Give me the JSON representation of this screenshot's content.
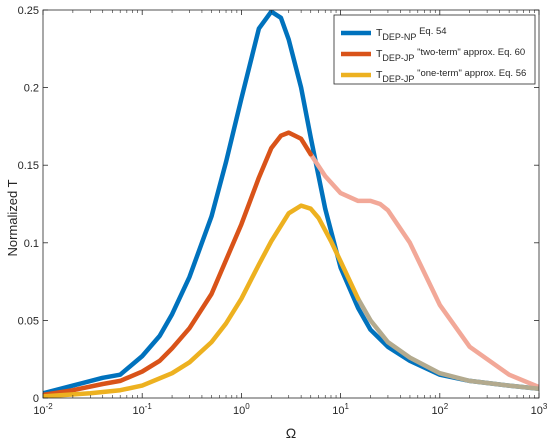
{
  "chart_data": {
    "type": "line",
    "title": "",
    "xlabel": "Ω",
    "ylabel": "Normalized T",
    "xscale": "log",
    "xlim": [
      0.01,
      1000
    ],
    "ylim": [
      0,
      0.25
    ],
    "grid": false,
    "legend_position": "top-right",
    "x_ticks": [
      {
        "value": 0.01,
        "base": "10",
        "exp": "-2"
      },
      {
        "value": 0.1,
        "base": "10",
        "exp": "-1"
      },
      {
        "value": 1,
        "base": "10",
        "exp": "0"
      },
      {
        "value": 10,
        "base": "10",
        "exp": "1"
      },
      {
        "value": 100,
        "base": "10",
        "exp": "2"
      },
      {
        "value": 1000,
        "base": "10",
        "exp": "3"
      }
    ],
    "y_ticks": [
      {
        "value": 0,
        "label": "0"
      },
      {
        "value": 0.05,
        "label": "0.05"
      },
      {
        "value": 0.1,
        "label": "0.1"
      },
      {
        "value": 0.15,
        "label": "0.15"
      },
      {
        "value": 0.2,
        "label": "0.2"
      },
      {
        "value": 0.25,
        "label": "0.25"
      }
    ],
    "series": [
      {
        "name_main": "T",
        "name_sub": "DEP-NP",
        "name_suffix": "Eq. 54",
        "color": "#0072BD",
        "x": [
          0.01,
          0.02,
          0.04,
          0.06,
          0.1,
          0.15,
          0.2,
          0.3,
          0.5,
          0.7,
          1,
          1.5,
          2,
          2.5,
          3,
          4,
          5,
          7,
          10,
          15,
          20,
          30,
          50,
          100,
          200,
          500,
          1000
        ],
        "y": [
          0.003,
          0.008,
          0.013,
          0.015,
          0.027,
          0.04,
          0.054,
          0.078,
          0.117,
          0.152,
          0.193,
          0.238,
          0.249,
          0.245,
          0.231,
          0.2,
          0.168,
          0.122,
          0.084,
          0.058,
          0.044,
          0.033,
          0.024,
          0.015,
          0.011,
          0.008,
          0.006
        ]
      },
      {
        "name_main": "T",
        "name_sub": "DEP-JP",
        "name_suffix": "\"two-term\" approx. Eq. 60",
        "color": "#D95319",
        "fade_after": 5,
        "faded_color": "#F2A898",
        "x": [
          0.01,
          0.02,
          0.04,
          0.06,
          0.1,
          0.15,
          0.2,
          0.3,
          0.5,
          1,
          1.5,
          2,
          2.5,
          3,
          4,
          5,
          7,
          10,
          15,
          20,
          25,
          30,
          50,
          100,
          200,
          500,
          1000
        ],
        "y": [
          0.002,
          0.005,
          0.009,
          0.011,
          0.017,
          0.024,
          0.032,
          0.045,
          0.067,
          0.112,
          0.142,
          0.161,
          0.169,
          0.171,
          0.167,
          0.157,
          0.143,
          0.132,
          0.127,
          0.127,
          0.125,
          0.121,
          0.1,
          0.06,
          0.033,
          0.015,
          0.007
        ]
      },
      {
        "name_main": "T",
        "name_sub": "DEP-JP",
        "name_suffix": "\"one-term\" approx. Eq. 56",
        "color": "#EDB120",
        "fade_after": 12,
        "faded_color": "#B3AA8E",
        "x": [
          0.01,
          0.03,
          0.06,
          0.1,
          0.2,
          0.3,
          0.5,
          0.7,
          1,
          1.5,
          2,
          3,
          4,
          5,
          6,
          8,
          10,
          15,
          20,
          30,
          50,
          100,
          200,
          500,
          1000
        ],
        "y": [
          0.001,
          0.003,
          0.005,
          0.008,
          0.016,
          0.023,
          0.036,
          0.048,
          0.064,
          0.086,
          0.101,
          0.119,
          0.124,
          0.122,
          0.116,
          0.101,
          0.088,
          0.064,
          0.05,
          0.036,
          0.026,
          0.016,
          0.011,
          0.008,
          0.006
        ]
      }
    ]
  }
}
